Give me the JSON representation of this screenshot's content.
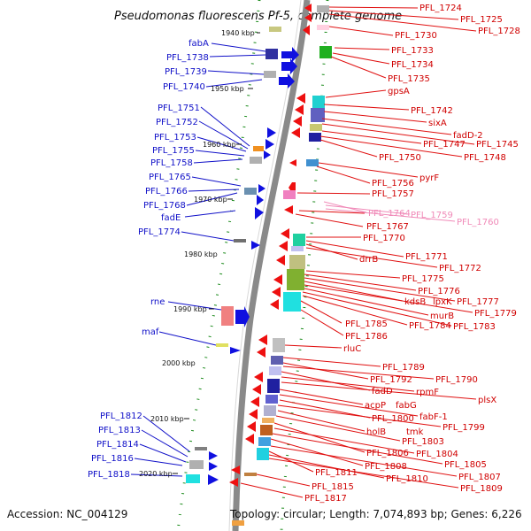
{
  "title": "Pseudomonas fluorescens Pf-5, complete genome",
  "footer": {
    "accession": "Accession: NC_004129",
    "summary": "Topology: circular; Length: 7,074,893 bp; Genes: 6,226"
  },
  "colors": {
    "backbone": "#8a8a8a",
    "forward_gene": "#1010e0",
    "reverse_gene": "#ee1010",
    "left_label": "#1010c8",
    "right_label": "#d00000",
    "pink_label": "#f08ab8",
    "tick": "#1a8a1a"
  },
  "kbp_ticks": [
    "1940 kbp",
    "1950 kbp",
    "1960 kbp",
    "1970 kbp",
    "1980 kbp",
    "1990 kbp",
    "2000 kbp",
    "2010 kbp",
    "2020 kbp"
  ],
  "left_labels": [
    "fabA",
    "PFL_1738",
    "PFL_1739",
    "PFL_1740",
    "PFL_1751",
    "PFL_1752",
    "PFL_1753",
    "PFL_1755",
    "PFL_1758",
    "PFL_1765",
    "PFL_1766",
    "PFL_1768",
    "fadE",
    "PFL_1774",
    "rne",
    "maf",
    "PFL_1812",
    "PFL_1813",
    "PFL_1814",
    "PFL_1816",
    "PFL_1818"
  ],
  "right_labels": [
    "PFL_1724",
    "PFL_1725",
    "PFL_1728",
    "PFL_1730",
    "PFL_1733",
    "PFL_1734",
    "PFL_1735",
    "gpsA",
    "PFL_1742",
    "sixA",
    "fadD-2",
    "PFL_1745",
    "PFL_1747",
    "PFL_1748",
    "PFL_1750",
    "pyrF",
    "PFL_1756",
    "PFL_1757",
    "PFL_1767",
    "PFL_1770",
    "PFL_1771",
    "drrB",
    "PFL_1772",
    "PFL_1775",
    "PFL_1776",
    "PFL_1777",
    "kdsB",
    "lpxK",
    "PFL_1779",
    "murB",
    "PFL_1785",
    "PFL_1784",
    "PFL_1783",
    "PFL_1786",
    "rluC",
    "PFL_1789",
    "PFL_1792",
    "PFL_1790",
    "fadD",
    "rpmF",
    "plsX",
    "acpP",
    "fabG",
    "fabF-1",
    "PFL_1800",
    "PFL_1799",
    "holB",
    "tmk",
    "PFL_1803",
    "PFL_1806",
    "PFL_1804",
    "PFL_1805",
    "PFL_1808",
    "PFL_1807",
    "PFL_1811",
    "PFL_1810",
    "PFL_1809",
    "PFL_1815",
    "PFL_1817"
  ],
  "pink_labels": [
    "PFL_1764",
    "PFL_1759",
    "PFL_1760"
  ]
}
